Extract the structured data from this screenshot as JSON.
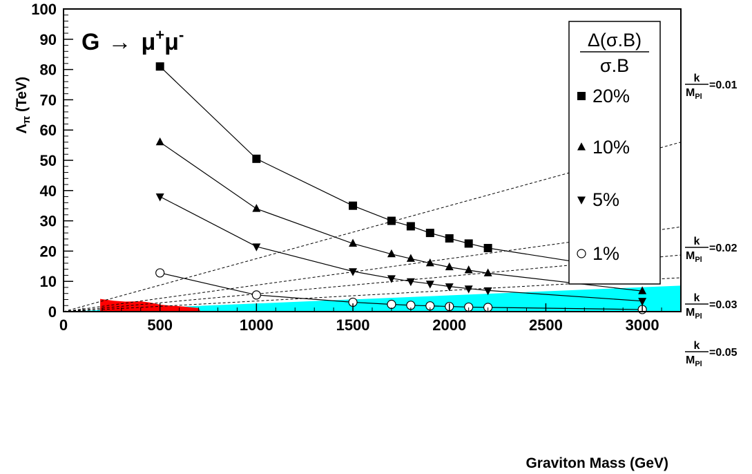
{
  "chart_data": {
    "type": "line",
    "title": "G → μ⁺μ⁻",
    "title_parts": {
      "main": "G",
      "arrow": "→",
      "particle": "μ",
      "sup_plus": "+",
      "particle2": "μ",
      "sup_minus": "-"
    },
    "xlabel": "Graviton Mass (GeV)",
    "ylabel": "Λπ (TeV)",
    "ylabel_parts": {
      "lambda": "Λ",
      "sub": "π",
      "rest": " (TeV)"
    },
    "xlim": [
      0,
      3200
    ],
    "ylim": [
      0,
      100
    ],
    "x_ticks": [
      0,
      500,
      1000,
      1500,
      2000,
      2500,
      3000
    ],
    "y_ticks": [
      0,
      10,
      20,
      30,
      40,
      50,
      60,
      70,
      80,
      90,
      100
    ],
    "legend": {
      "title_numerator": "Δ(σ.B)",
      "title_denominator": "σ.B",
      "placement": "top-right"
    },
    "series": [
      {
        "name": "20%",
        "marker": "square",
        "x": [
          500,
          1000,
          1500,
          1700,
          1800,
          1900,
          2000,
          2100,
          2200,
          3000
        ],
        "y": [
          81,
          50.5,
          35,
          30,
          28.2,
          26,
          24.2,
          22.5,
          21,
          13
        ]
      },
      {
        "name": "10%",
        "marker": "triangle-up",
        "x": [
          500,
          1000,
          1500,
          1700,
          1800,
          1900,
          2000,
          2100,
          2200,
          3000
        ],
        "y": [
          56,
          34,
          22.5,
          19,
          17.5,
          16,
          14.7,
          13.7,
          12.7,
          6.8
        ]
      },
      {
        "name": "5%",
        "marker": "triangle-down",
        "x": [
          500,
          1000,
          1500,
          1700,
          1800,
          1900,
          2000,
          2100,
          2200,
          3000
        ],
        "y": [
          38,
          21.5,
          13.3,
          11,
          10,
          9.2,
          8.3,
          7.6,
          7,
          3.5
        ]
      },
      {
        "name": "1%",
        "marker": "open-circle",
        "x": [
          500,
          1000,
          1500,
          1700,
          1800,
          1900,
          2000,
          2100,
          2200,
          3000
        ],
        "y": [
          12.8,
          5.5,
          3.1,
          2.4,
          2.1,
          1.9,
          1.7,
          1.5,
          1.4,
          0.7
        ]
      }
    ],
    "reference_lines": [
      {
        "k_over_mpl": "=0.01",
        "y_at_3200": 56
      },
      {
        "k_over_mpl": "=0.02",
        "y_at_3200": 28
      },
      {
        "k_over_mpl": "=0.03",
        "y_at_3200": 18.7
      },
      {
        "k_over_mpl": "=0.05",
        "y_at_3200": 11.2
      }
    ],
    "kline_label": {
      "numerator": "k",
      "denominator": "M",
      "denominator_sub": "Pl"
    },
    "regions": [
      {
        "name": "excluded-red",
        "color": "#ff0000",
        "x": [
          190,
          190,
          260,
          320,
          400,
          450,
          500,
          550,
          600,
          700,
          710
        ],
        "y": [
          0,
          4.2,
          3.6,
          3.3,
          3.4,
          3.0,
          2.3,
          2.0,
          1.8,
          1.2,
          0
        ]
      },
      {
        "name": "theory-cyan",
        "color": "#00ffff",
        "x": [
          0,
          3200,
          3200
        ],
        "y": [
          0,
          0,
          8.6
        ]
      }
    ],
    "grid": false
  }
}
